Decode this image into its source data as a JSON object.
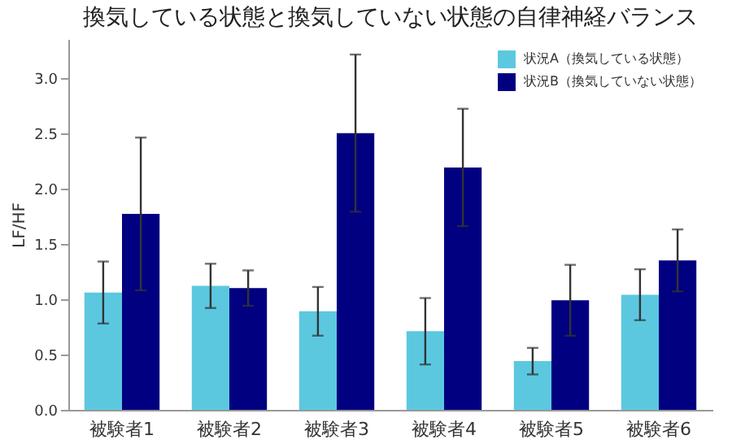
{
  "chart_data": {
    "type": "bar",
    "title": "換気している状態と換気していない状態の自律神経バランス",
    "ylabel": "LF/HF",
    "categories": [
      "被験者1",
      "被験者2",
      "被験者3",
      "被験者4",
      "被験者5",
      "被験者6"
    ],
    "series": [
      {
        "name": "状況A（換気している状態）",
        "color": "#5bc8e0",
        "values": [
          1.06,
          1.12,
          0.89,
          0.71,
          0.44,
          1.04
        ],
        "errors": [
          0.28,
          0.2,
          0.22,
          0.3,
          0.12,
          0.23
        ]
      },
      {
        "name": "状況B（換気していない状態）",
        "color": "#000080",
        "values": [
          1.77,
          1.1,
          2.5,
          2.19,
          0.99,
          1.35
        ],
        "errors": [
          0.69,
          0.16,
          0.71,
          0.53,
          0.32,
          0.28
        ]
      }
    ],
    "ylim": [
      0,
      3.35
    ],
    "yticks": [
      {
        "value": 0,
        "label": "0.0"
      },
      0.5,
      {
        "value": 1,
        "label": "1.0"
      },
      1.5,
      {
        "value": 2,
        "label": "2.0"
      },
      2.5,
      {
        "value": 3,
        "label": "3.0"
      }
    ],
    "grid": false,
    "legend": "top right"
  }
}
